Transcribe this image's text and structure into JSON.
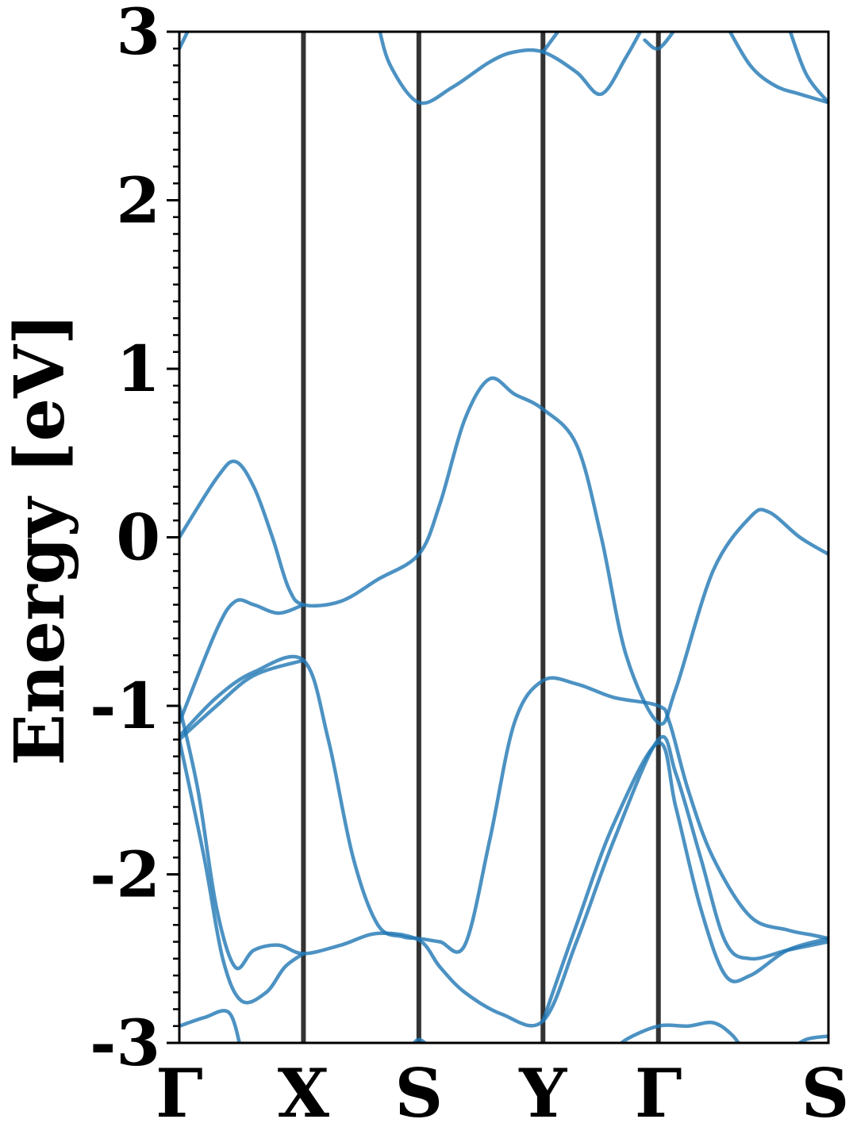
{
  "chart_data": {
    "type": "line",
    "title": "",
    "ylabel": "Energy [eV]",
    "xlabel": "",
    "ylim": [
      -3,
      3
    ],
    "y_ticks": [
      -3,
      -2,
      -1,
      0,
      1,
      2,
      3
    ],
    "y_tick_labels": [
      "-3",
      "-2",
      "-1",
      "0",
      "1",
      "2",
      "3"
    ],
    "y_minor_step": 0.1,
    "grid": false,
    "legend": "none",
    "colors": {
      "band": "#1f77b4",
      "divider": "#333333",
      "axis": "#000000"
    },
    "k_points": [
      {
        "label": "Γ",
        "x": 0.0
      },
      {
        "label": "X",
        "x": 1.0
      },
      {
        "label": "S",
        "x": 1.93
      },
      {
        "label": "Y",
        "x": 2.93
      },
      {
        "label": "Γ",
        "x": 3.86
      },
      {
        "label": "S",
        "x": 5.23
      }
    ],
    "xlim": [
      0,
      5.23
    ],
    "series": [
      {
        "values": [
          [
            0,
            0
          ],
          [
            0.3,
            0.35
          ],
          [
            0.45,
            0.45
          ],
          [
            0.6,
            0.3
          ],
          [
            0.75,
            0.0
          ],
          [
            0.88,
            -0.3
          ],
          [
            1.0,
            -0.4
          ],
          [
            1.3,
            -0.38
          ],
          [
            1.6,
            -0.25
          ],
          [
            1.93,
            -0.1
          ],
          [
            2.1,
            0.2
          ],
          [
            2.3,
            0.7
          ],
          [
            2.5,
            0.94
          ],
          [
            2.7,
            0.85
          ],
          [
            2.93,
            0.76
          ],
          [
            3.2,
            0.55
          ],
          [
            3.4,
            0.0
          ],
          [
            3.6,
            -0.7
          ],
          [
            3.86,
            -1.1
          ],
          [
            4.0,
            -0.9
          ],
          [
            4.3,
            -0.2
          ],
          [
            4.6,
            0.12
          ],
          [
            4.75,
            0.15
          ],
          [
            5.0,
            0.0
          ],
          [
            5.23,
            -0.1
          ]
        ]
      },
      {
        "values": [
          [
            0,
            -1.1
          ],
          [
            0.3,
            -0.55
          ],
          [
            0.45,
            -0.38
          ],
          [
            0.6,
            -0.4
          ],
          [
            0.8,
            -0.45
          ],
          [
            1.0,
            -0.4
          ]
        ]
      },
      {
        "values": [
          [
            0,
            -1.18
          ],
          [
            0.3,
            -0.95
          ],
          [
            0.6,
            -0.8
          ],
          [
            1.0,
            -0.73
          ],
          [
            1.2,
            -1.2
          ],
          [
            1.4,
            -1.9
          ],
          [
            1.6,
            -2.3
          ],
          [
            1.8,
            -2.37
          ],
          [
            1.93,
            -2.38
          ],
          [
            2.1,
            -2.4
          ],
          [
            2.3,
            -2.42
          ],
          [
            2.5,
            -1.8
          ],
          [
            2.7,
            -1.1
          ],
          [
            2.93,
            -0.85
          ],
          [
            3.2,
            -0.87
          ],
          [
            3.5,
            -0.95
          ],
          [
            3.86,
            -1.0
          ],
          [
            3.95,
            -1.1
          ],
          [
            4.1,
            -1.5
          ],
          [
            4.3,
            -1.9
          ],
          [
            4.6,
            -2.25
          ],
          [
            4.9,
            -2.33
          ],
          [
            5.1,
            -2.36
          ],
          [
            5.23,
            -2.38
          ]
        ]
      },
      {
        "values": [
          [
            0,
            -1.2
          ],
          [
            0.3,
            -1.0
          ],
          [
            0.6,
            -0.82
          ],
          [
            1.0,
            -0.73
          ]
        ]
      },
      {
        "values": [
          [
            0,
            -1.0
          ],
          [
            0.15,
            -1.5
          ],
          [
            0.3,
            -2.2
          ],
          [
            0.45,
            -2.55
          ],
          [
            0.6,
            -2.45
          ],
          [
            0.8,
            -2.42
          ],
          [
            1.0,
            -2.47
          ],
          [
            1.3,
            -2.42
          ],
          [
            1.6,
            -2.35
          ],
          [
            1.93,
            -2.39
          ],
          [
            2.1,
            -2.55
          ],
          [
            2.3,
            -2.7
          ],
          [
            2.6,
            -2.83
          ],
          [
            2.93,
            -2.87
          ],
          [
            3.2,
            -2.4
          ],
          [
            3.5,
            -1.8
          ],
          [
            3.86,
            -1.2
          ],
          [
            4.0,
            -1.4
          ],
          [
            4.2,
            -1.9
          ],
          [
            4.4,
            -2.4
          ],
          [
            4.6,
            -2.5
          ],
          [
            4.9,
            -2.45
          ],
          [
            5.23,
            -2.4
          ]
        ]
      },
      {
        "values": [
          [
            0,
            -1.2
          ],
          [
            0.2,
            -1.9
          ],
          [
            0.35,
            -2.5
          ],
          [
            0.5,
            -2.75
          ],
          [
            0.7,
            -2.7
          ],
          [
            0.85,
            -2.55
          ],
          [
            1.0,
            -2.47
          ]
        ]
      },
      {
        "values": [
          [
            2.93,
            -2.87
          ],
          [
            3.2,
            -2.3
          ],
          [
            3.5,
            -1.7
          ],
          [
            3.86,
            -1.22
          ],
          [
            4.0,
            -1.6
          ],
          [
            4.2,
            -2.2
          ],
          [
            4.4,
            -2.6
          ],
          [
            4.6,
            -2.6
          ],
          [
            4.9,
            -2.45
          ],
          [
            5.23,
            -2.38
          ]
        ]
      },
      {
        "values": [
          [
            0,
            2.9
          ],
          [
            0.1,
            3.05
          ]
        ]
      },
      {
        "values": [
          [
            1.6,
            3.05
          ],
          [
            1.7,
            2.8
          ],
          [
            1.93,
            2.58
          ],
          [
            2.2,
            2.67
          ],
          [
            2.5,
            2.82
          ],
          [
            2.7,
            2.88
          ],
          [
            2.93,
            2.88
          ],
          [
            3.2,
            2.76
          ],
          [
            3.4,
            2.63
          ],
          [
            3.6,
            2.85
          ],
          [
            3.75,
            3.05
          ]
        ]
      },
      {
        "values": [
          [
            2.93,
            2.88
          ],
          [
            3.1,
            3.05
          ]
        ]
      },
      {
        "values": [
          [
            3.75,
            2.95
          ],
          [
            3.86,
            2.9
          ],
          [
            4.0,
            3.02
          ]
        ]
      },
      {
        "values": [
          [
            4.4,
            3.05
          ],
          [
            4.6,
            2.8
          ],
          [
            4.8,
            2.68
          ],
          [
            5.0,
            2.63
          ],
          [
            5.23,
            2.58
          ]
        ]
      },
      {
        "values": [
          [
            4.9,
            3.05
          ],
          [
            5.05,
            2.75
          ],
          [
            5.23,
            2.58
          ]
        ]
      },
      {
        "values": [
          [
            0,
            -2.9
          ],
          [
            0.2,
            -2.85
          ],
          [
            0.4,
            -2.82
          ],
          [
            0.5,
            -3.05
          ]
        ]
      },
      {
        "values": [
          [
            1.85,
            -3.05
          ],
          [
            1.93,
            -2.98
          ],
          [
            2.05,
            -3.05
          ]
        ]
      },
      {
        "values": [
          [
            3.5,
            -3.05
          ],
          [
            3.6,
            -2.98
          ],
          [
            3.86,
            -2.9
          ],
          [
            4.1,
            -2.9
          ],
          [
            4.3,
            -2.88
          ],
          [
            4.45,
            -2.95
          ],
          [
            4.55,
            -3.05
          ]
        ]
      },
      {
        "values": [
          [
            4.9,
            -3.05
          ],
          [
            5.05,
            -2.98
          ],
          [
            5.23,
            -2.96
          ]
        ]
      }
    ]
  }
}
